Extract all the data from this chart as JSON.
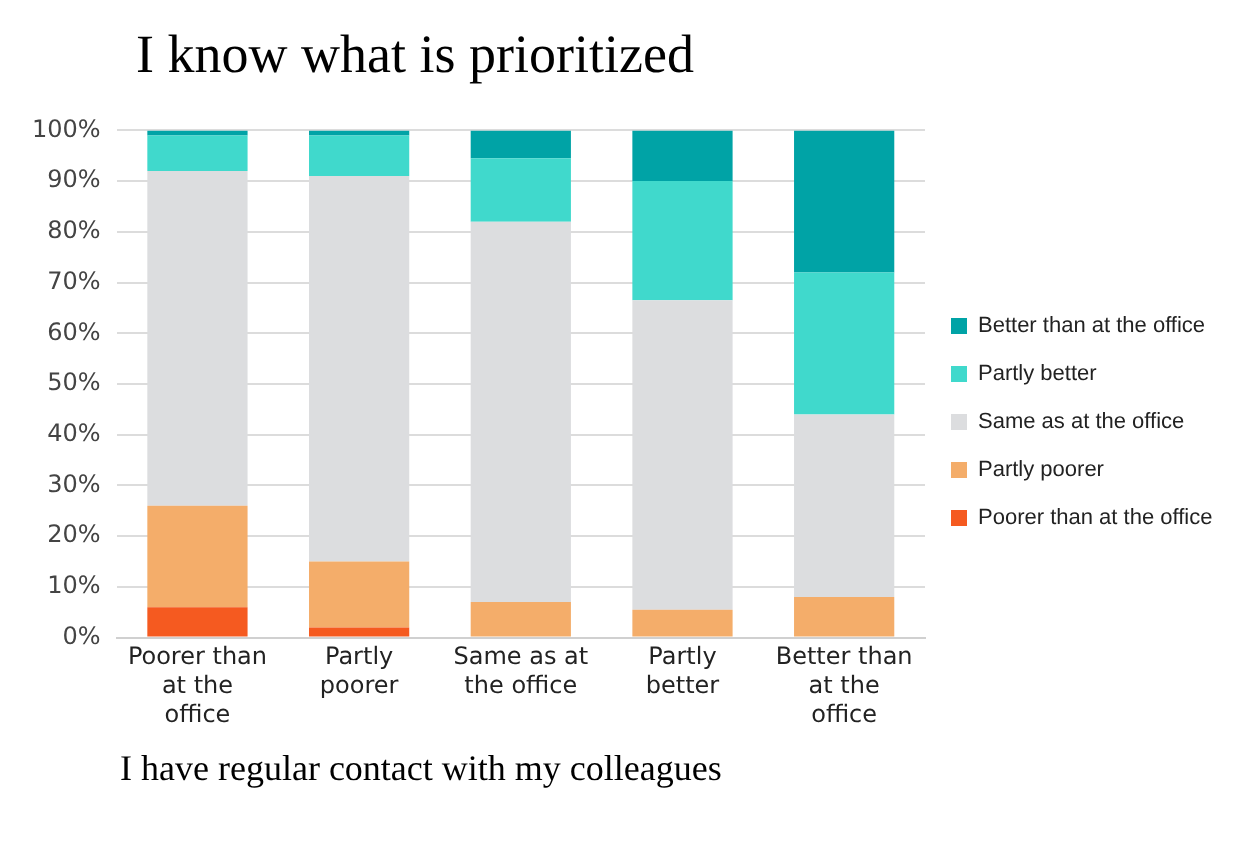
{
  "chart_data": {
    "type": "bar",
    "title": "I know what is prioritized",
    "xlabel": "I have regular contact with my colleagues",
    "stacked": true,
    "categories": [
      "Poorer than at the office",
      "Partly poorer",
      "Same as at the office",
      "Partly better",
      "Better than at the office"
    ],
    "series": [
      {
        "name": "Poorer than at the office",
        "color": "#f55a20",
        "values": [
          6,
          2,
          0,
          0,
          0
        ]
      },
      {
        "name": "Partly poorer",
        "color": "#f4ad6a",
        "values": [
          20,
          13,
          7,
          5.5,
          8
        ]
      },
      {
        "name": "Same as at the office",
        "color": "#dcdddf",
        "values": [
          66,
          76,
          75,
          61,
          36
        ]
      },
      {
        "name": "Partly better",
        "color": "#40d9cc",
        "values": [
          7,
          8,
          12.5,
          23.5,
          28
        ]
      },
      {
        "name": "Better than at the office",
        "color": "#00a3a6",
        "values": [
          1,
          1,
          5.5,
          10,
          28
        ]
      }
    ],
    "ylim": [
      0,
      100
    ],
    "yticks": [
      {
        "value": 0,
        "label": "0%"
      },
      {
        "value": 10,
        "label": "10%"
      },
      {
        "value": 20,
        "label": "20%"
      },
      {
        "value": 30,
        "label": "30%"
      },
      {
        "value": 40,
        "label": "40%"
      },
      {
        "value": 50,
        "label": "50%"
      },
      {
        "value": 60,
        "label": "60%"
      },
      {
        "value": 70,
        "label": "70%"
      },
      {
        "value": 80,
        "label": "80%"
      },
      {
        "value": 90,
        "label": "90%"
      },
      {
        "value": 100,
        "label": "100%"
      }
    ],
    "grid": "y",
    "legend": "right"
  }
}
